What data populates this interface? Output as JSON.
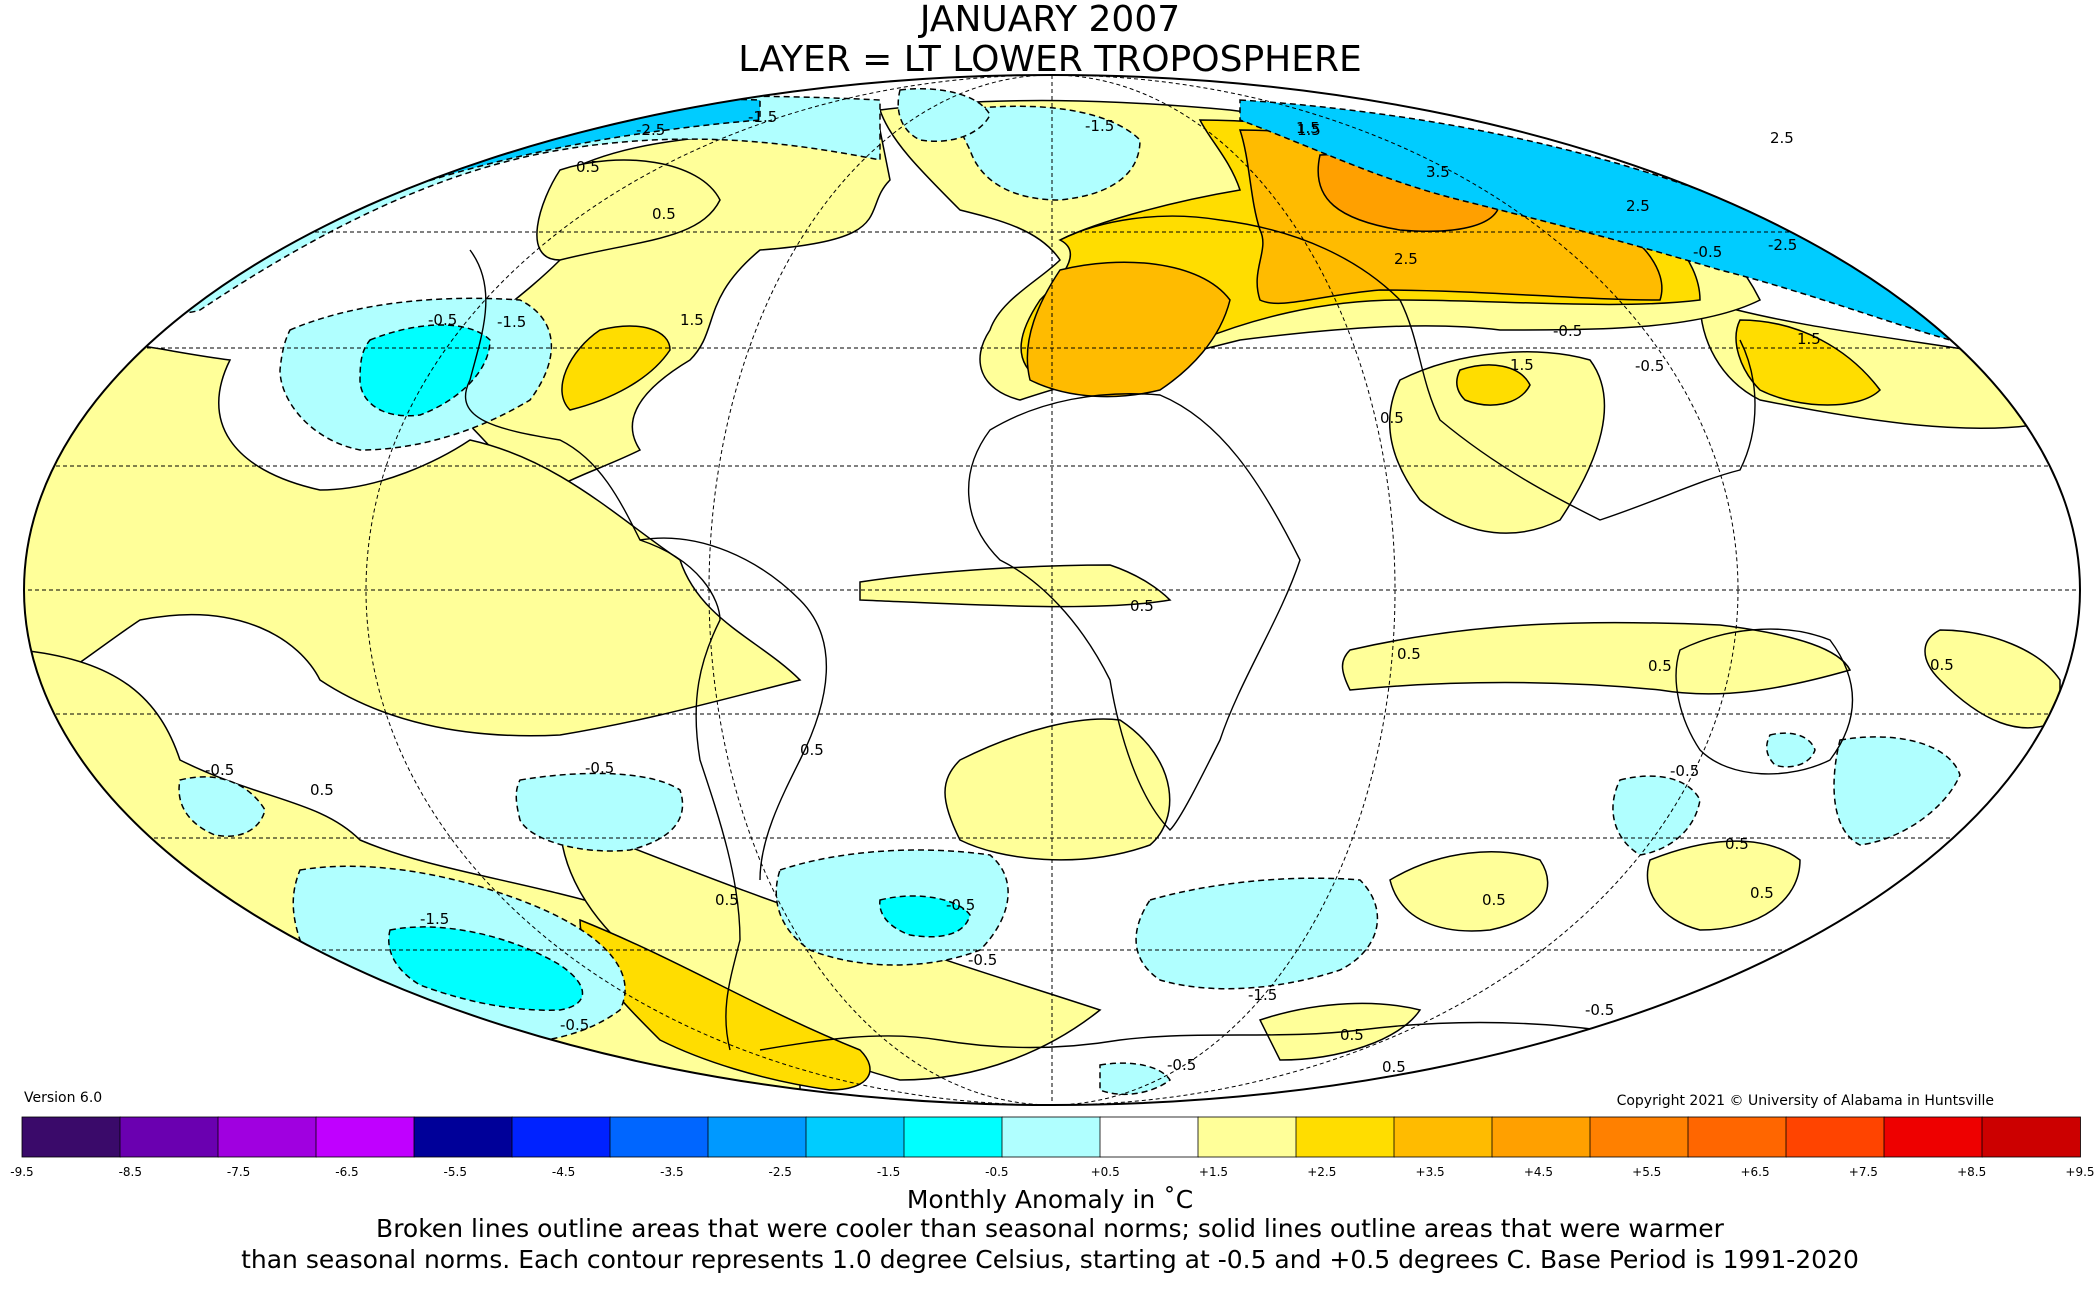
{
  "title": {
    "line1": "JANUARY 2007",
    "line2": "LAYER = LT LOWER TROPOSPHERE"
  },
  "version": "Version 6.0",
  "copyright": "Copyright 2021 © University of Alabama in Huntsville",
  "colorbar": {
    "ticks": [
      "-9.5",
      "-8.5",
      "-7.5",
      "-6.5",
      "-5.5",
      "-4.5",
      "-3.5",
      "-2.5",
      "-1.5",
      "-0.5",
      "+0.5",
      "+1.5",
      "+2.5",
      "+3.5",
      "+4.5",
      "+5.5",
      "+6.5",
      "+7.5",
      "+8.5",
      "+9.5"
    ],
    "colors": [
      "#3a0a6a",
      "#6a00b0",
      "#a000e0",
      "#c000ff",
      "#000099",
      "#0022ff",
      "#0066ff",
      "#0099ff",
      "#00ccff",
      "#00ffff",
      "#b0ffff",
      "#ffffff",
      "#ffff99",
      "#ffdd00",
      "#ffbb00",
      "#ffa000",
      "#ff8000",
      "#ff6600",
      "#ff4400",
      "#ee0000",
      "#cc0000"
    ]
  },
  "footer": {
    "units": "Monthly Anomaly in ˚C",
    "note_line1": "Broken lines outline areas that were cooler than seasonal norms; solid lines outline areas that were warmer",
    "note_line2": "than seasonal norms. Each contour represents 1.0 degree Celsius, starting at -0.5 and +0.5 degrees C. Base Period is 1991-2020"
  },
  "contour_labels": [
    "-2.5",
    "-1.5",
    "-1.5",
    "1.5",
    "0.5",
    "0.5",
    "-0.5",
    "-1.5",
    "1.5",
    "1.5",
    "3.5",
    "2.5",
    "2.5",
    "2.5",
    "-0.5",
    "-2.5",
    "1.5",
    "-0.5",
    "-0.5",
    "1.5",
    "0.5",
    "0.5",
    "0.5",
    "0.5",
    "0.5",
    "-0.5",
    "-0.5",
    "0.5",
    "-1.5",
    "-0.5",
    "-0.5",
    "0.5",
    "0.5",
    "-0.5",
    "-1.5",
    "-0.5",
    "0.5",
    "0.5",
    "-0.5",
    "0.5",
    "0.5",
    "0.5",
    "-0.5"
  ],
  "anomaly_regions": [
    {
      "name": "siberia-warm-core",
      "value": "+3.5",
      "color": "#ffa000"
    },
    {
      "name": "europe-warm",
      "value": "+2.5",
      "color": "#ffbb00"
    },
    {
      "name": "arctic-cold",
      "value": "-2.5",
      "color": "#00ccff"
    },
    {
      "name": "south-pacific-cold",
      "value": "-1.5",
      "color": "#00ffff"
    },
    {
      "name": "south-america-warm",
      "value": "+1.5",
      "color": "#ffdd00"
    }
  ]
}
